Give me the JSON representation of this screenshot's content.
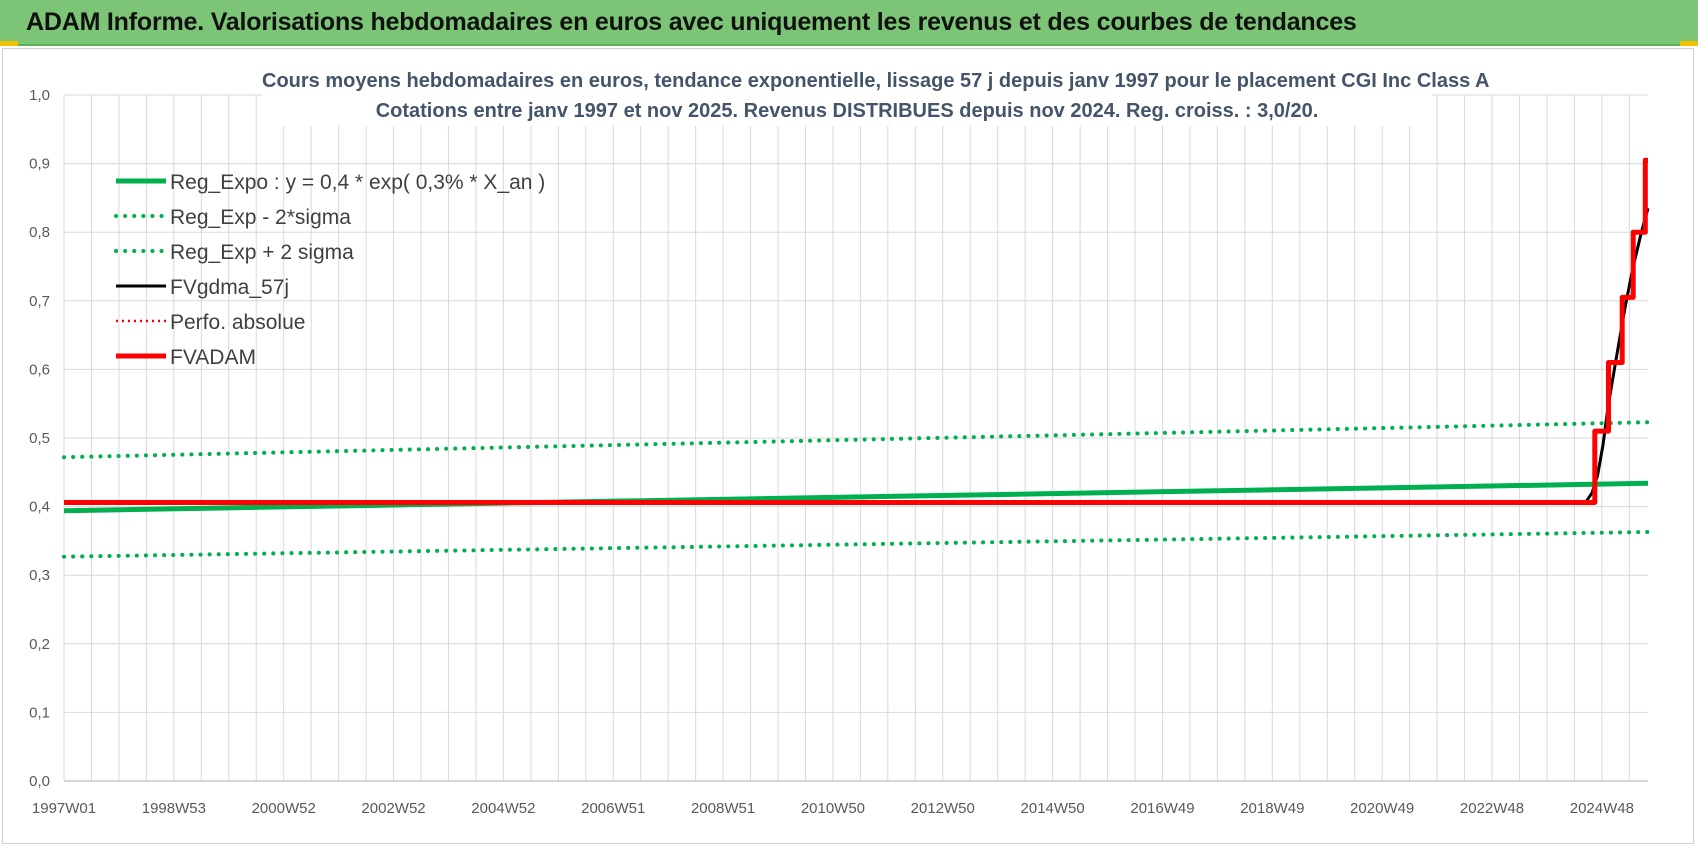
{
  "banner": {
    "title": "ADAM Informe. Valorisations hebdomadaires en euros avec uniquement les revenus et des courbes de tendances"
  },
  "colors": {
    "banner": "#7cc576",
    "reg_expo": "#00b050",
    "fvgdma": "#000000",
    "fvadam": "#ff0000",
    "grid": "#d9d9d9",
    "title": "#44546a"
  },
  "chart_data": {
    "type": "line",
    "title_lines": [
      "Cours moyens hebdomadaires en euros, tendance exponentielle, lissage 57 j depuis janv 1997  pour le placement CGI Inc Class A",
      "Cotations entre janv 1997 et nov 2025. Revenus DISTRIBUES depuis nov 2024.  Reg. croiss. : 3,0/20."
    ],
    "xlabel": "",
    "ylabel": "",
    "ylim": [
      0,
      1.0
    ],
    "y_ticks": [
      "0,0",
      "0,1",
      "0,2",
      "0,3",
      "0,4",
      "0,5",
      "0,6",
      "0,7",
      "0,8",
      "0,9",
      "1,0"
    ],
    "x_ticks": [
      "1997W01",
      "1998W53",
      "2000W52",
      "2002W52",
      "2004W52",
      "2006W51",
      "2008W51",
      "2010W50",
      "2012W50",
      "2014W50",
      "2016W49",
      "2018W49",
      "2020W49",
      "2022W48",
      "2024W48"
    ],
    "x_range": [
      1997.0,
      2025.87
    ],
    "grid": true,
    "legend_position": "top-left",
    "series": [
      {
        "name": "Reg_Expo : y = 0,4 * exp( 0,3% *  X_an )",
        "style": "solid",
        "color": "#00b050",
        "x": [
          1997.0,
          2025.87
        ],
        "y": [
          0.394,
          0.434
        ]
      },
      {
        "name": "Reg_Exp - 2*sigma",
        "style": "dotted",
        "color": "#00b050",
        "x": [
          1997.0,
          2025.87
        ],
        "y": [
          0.327,
          0.363
        ]
      },
      {
        "name": "Reg_Exp + 2 sigma",
        "style": "dotted",
        "color": "#00b050",
        "x": [
          1997.0,
          2025.87
        ],
        "y": [
          0.472,
          0.523
        ]
      },
      {
        "name": "FVgdma_57j",
        "style": "solid",
        "color": "#000000",
        "x": [
          1997.0,
          2024.6,
          2024.75,
          2024.85,
          2024.95,
          2025.05,
          2025.15,
          2025.3,
          2025.45,
          2025.6,
          2025.75,
          2025.87
        ],
        "y": [
          0.406,
          0.406,
          0.408,
          0.42,
          0.445,
          0.49,
          0.55,
          0.62,
          0.69,
          0.75,
          0.8,
          0.835
        ]
      },
      {
        "name": "Perfo. absolue",
        "style": "dotted",
        "color": "#ff0000",
        "x": [
          1997.0,
          2024.9
        ],
        "y": [
          0.406,
          0.406
        ]
      },
      {
        "name": "FVADAM",
        "style": "solid",
        "color": "#ff0000",
        "x": [
          1997.0,
          2024.9,
          2024.9,
          2025.15,
          2025.15,
          2025.4,
          2025.4,
          2025.6,
          2025.6,
          2025.82,
          2025.82,
          2025.87
        ],
        "y": [
          0.406,
          0.406,
          0.51,
          0.51,
          0.61,
          0.61,
          0.705,
          0.705,
          0.8,
          0.8,
          0.905,
          0.905
        ]
      }
    ]
  }
}
